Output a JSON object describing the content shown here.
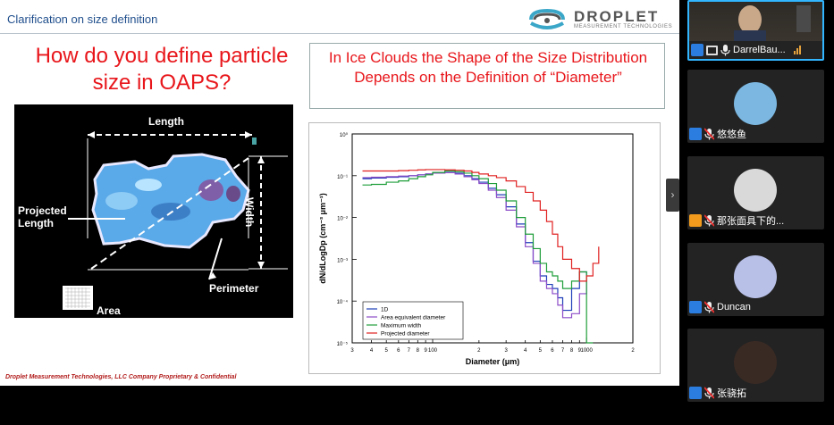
{
  "slide": {
    "header_title": "Clarification on size definition",
    "logo_word": "DROPLET",
    "logo_sub": "MEASUREMENT TECHNOLOGIES",
    "main_title": "How do you define particle size in OAPS?",
    "right_title": "In Ice Clouds the Shape of the Size Distribution Depends on the Definition of “Diameter”",
    "particle_labels": {
      "length": "Length",
      "width": "Width",
      "projected_length": "Projected Length",
      "perimeter": "Perimeter",
      "area": "Area"
    },
    "footer": "Droplet Measurement Technologies, LLC Company Proprietary &  Confidential"
  },
  "participants": [
    {
      "name": "DarrelBau...",
      "role": "host",
      "video": true
    },
    {
      "name": "悠悠鱼",
      "role": "attendee",
      "video": false
    },
    {
      "name": "那张面具下的...",
      "role": "attendee",
      "video": false
    },
    {
      "name": "Duncan",
      "role": "attendee",
      "video": false
    },
    {
      "name": "张骁拓",
      "role": "attendee",
      "video": false
    }
  ],
  "colors": {
    "slide_title": "#1f4e8c",
    "accent_red": "#e8161b",
    "active_speaker_border": "#32b6ff",
    "host_icon": "#2b7de0"
  },
  "chart_data": {
    "type": "line",
    "xscale": "log",
    "yscale": "log",
    "xlim": [
      30,
      2000
    ],
    "ylim": [
      1e-05,
      1
    ],
    "xlabel": "Diameter (μm)",
    "ylabel": "dN/dLogDp (cm⁻³ μm⁻¹)",
    "x_tick_labels": [
      "3",
      "4",
      "5",
      "6",
      "7",
      "8",
      "9",
      "100",
      "2",
      "3",
      "4",
      "5",
      "6",
      "7",
      "8",
      "9",
      "1000",
      "2"
    ],
    "y_tick_labels": [
      "10⁰",
      "10⁻¹",
      "10⁻²",
      "10⁻³",
      "10⁻⁴",
      "10⁻⁵"
    ],
    "legend_position": "bottom-left",
    "series": [
      {
        "name": "1D",
        "color": "#1f3fb8",
        "x": [
          35,
          40,
          50,
          60,
          70,
          80,
          90,
          100,
          120,
          140,
          160,
          180,
          200,
          230,
          260,
          300,
          350,
          400,
          450,
          500,
          550,
          600,
          650,
          700,
          800,
          900,
          1000
        ],
        "y": [
          0.085,
          0.088,
          0.092,
          0.095,
          0.1,
          0.105,
          0.11,
          0.115,
          0.12,
          0.115,
          0.1,
          0.085,
          0.07,
          0.05,
          0.035,
          0.018,
          0.007,
          0.0025,
          0.0009,
          0.0004,
          0.00025,
          0.0002,
          0.00012,
          6e-05,
          0.0002,
          0.0005,
          0.0004
        ]
      },
      {
        "name": "Area equivalent diameter",
        "color": "#8c4cc8",
        "x": [
          35,
          40,
          50,
          60,
          70,
          80,
          90,
          100,
          120,
          140,
          160,
          180,
          200,
          230,
          260,
          300,
          350,
          400,
          450,
          500,
          550,
          600,
          650,
          700,
          800,
          900,
          1000
        ],
        "y": [
          0.09,
          0.092,
          0.095,
          0.098,
          0.1,
          0.105,
          0.11,
          0.115,
          0.118,
          0.11,
          0.095,
          0.08,
          0.065,
          0.045,
          0.03,
          0.015,
          0.006,
          0.002,
          0.0008,
          0.0003,
          0.0002,
          0.00015,
          8e-05,
          4e-05,
          5e-05,
          0.00015,
          0.0003
        ]
      },
      {
        "name": "Maximum width",
        "color": "#1f9e3a",
        "x": [
          35,
          40,
          50,
          60,
          70,
          80,
          90,
          100,
          120,
          140,
          160,
          180,
          200,
          230,
          260,
          300,
          350,
          400,
          450,
          500,
          550,
          600,
          650,
          700,
          800,
          900,
          1000,
          1100
        ],
        "y": [
          0.06,
          0.062,
          0.07,
          0.075,
          0.085,
          0.095,
          0.105,
          0.12,
          0.13,
          0.125,
          0.115,
          0.1,
          0.085,
          0.065,
          0.045,
          0.025,
          0.01,
          0.004,
          0.0018,
          0.0008,
          0.0005,
          0.0004,
          0.0003,
          0.0002,
          0.0003,
          0.0005,
          1e-05,
          1e-05
        ]
      },
      {
        "name": "Projected diameter",
        "color": "#e02020",
        "x": [
          35,
          40,
          50,
          60,
          70,
          80,
          90,
          100,
          120,
          140,
          160,
          180,
          200,
          230,
          260,
          300,
          350,
          400,
          450,
          500,
          550,
          600,
          650,
          700,
          800,
          900,
          1000,
          1100,
          1200
        ],
        "y": [
          0.13,
          0.13,
          0.13,
          0.132,
          0.135,
          0.138,
          0.14,
          0.14,
          0.138,
          0.135,
          0.13,
          0.12,
          0.11,
          0.1,
          0.09,
          0.075,
          0.055,
          0.04,
          0.025,
          0.015,
          0.008,
          0.004,
          0.002,
          0.001,
          0.0006,
          0.0003,
          0.0004,
          0.0008,
          0.002
        ]
      }
    ]
  }
}
